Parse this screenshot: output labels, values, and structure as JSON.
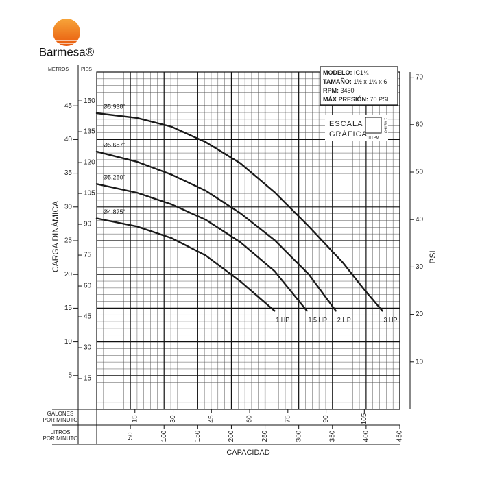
{
  "brand": "Barmesa®",
  "specs": [
    {
      "label": "MODELO:",
      "value": "IC1¼"
    },
    {
      "label": "TAMAÑO:",
      "value": "1½ x 1¼ x 6"
    },
    {
      "label": "RPM:",
      "value": "3450"
    },
    {
      "label": "MÁX PRESIÓN:",
      "value": "70 PSI"
    }
  ],
  "scale": {
    "title": [
      "ESCALA",
      "GRÁFICA"
    ],
    "height": "1 METRO",
    "width": "10 LPM"
  },
  "chart_data": {
    "type": "line",
    "ylabel": "CARGA DINÁMICA",
    "ylabel_unit": "METROS",
    "y2label": "PSI",
    "xlabel": [
      "LITROS",
      "POR MINUTO"
    ],
    "xtitle": "CAPACIDAD",
    "xlim": [
      0,
      450
    ],
    "xticks": [
      50,
      100,
      150,
      200,
      250,
      300,
      350,
      400,
      450
    ],
    "ylim": [
      0,
      50
    ],
    "yticks": [
      5,
      10,
      15,
      20,
      25,
      30,
      35,
      40,
      45
    ],
    "y2lim": [
      0,
      71.1
    ],
    "y2ticks": [
      10,
      20,
      30,
      40,
      50,
      60,
      70
    ],
    "y_feet": {
      "label": "PIES",
      "lim": [
        0,
        164.04
      ],
      "ticks": [
        15,
        30,
        45,
        60,
        75,
        90,
        105,
        120,
        135,
        150
      ]
    },
    "x_gpm": {
      "label": [
        "GALONES",
        "POR MINUTO"
      ],
      "lim": [
        0,
        118.9
      ],
      "ticks": [
        15,
        30,
        45,
        60,
        75,
        90,
        105
      ]
    },
    "grid": true,
    "series": [
      {
        "name": "Ø5.938\"",
        "hp": "3 HP",
        "color": "#1a1a1a",
        "x": [
          0,
          60,
          111,
          162,
          213,
          264,
          315,
          366,
          396,
          424
        ],
        "values": [
          43.9,
          43.2,
          41.9,
          39.6,
          36.5,
          32.2,
          27.1,
          21.7,
          17.9,
          14.6
        ]
      },
      {
        "name": "Ø5.687\"",
        "hp": "2 HP",
        "color": "#1a1a1a",
        "x": [
          0,
          60,
          111,
          162,
          213,
          264,
          315,
          355
        ],
        "values": [
          38.2,
          36.7,
          34.8,
          32.4,
          29.1,
          25.1,
          20.0,
          14.6
        ]
      },
      {
        "name": "Ø5.250\"",
        "hp": "1.5 HP",
        "color": "#1a1a1a",
        "x": [
          0,
          60,
          111,
          162,
          213,
          264,
          312
        ],
        "values": [
          33.4,
          32.1,
          30.4,
          28.1,
          24.8,
          20.5,
          14.6
        ]
      },
      {
        "name": "Ø4.875\"",
        "hp": "1 HP",
        "color": "#1a1a1a",
        "x": [
          0,
          60,
          111,
          162,
          213,
          264
        ],
        "values": [
          28.3,
          27.1,
          25.4,
          22.8,
          19.0,
          14.6
        ]
      }
    ]
  }
}
